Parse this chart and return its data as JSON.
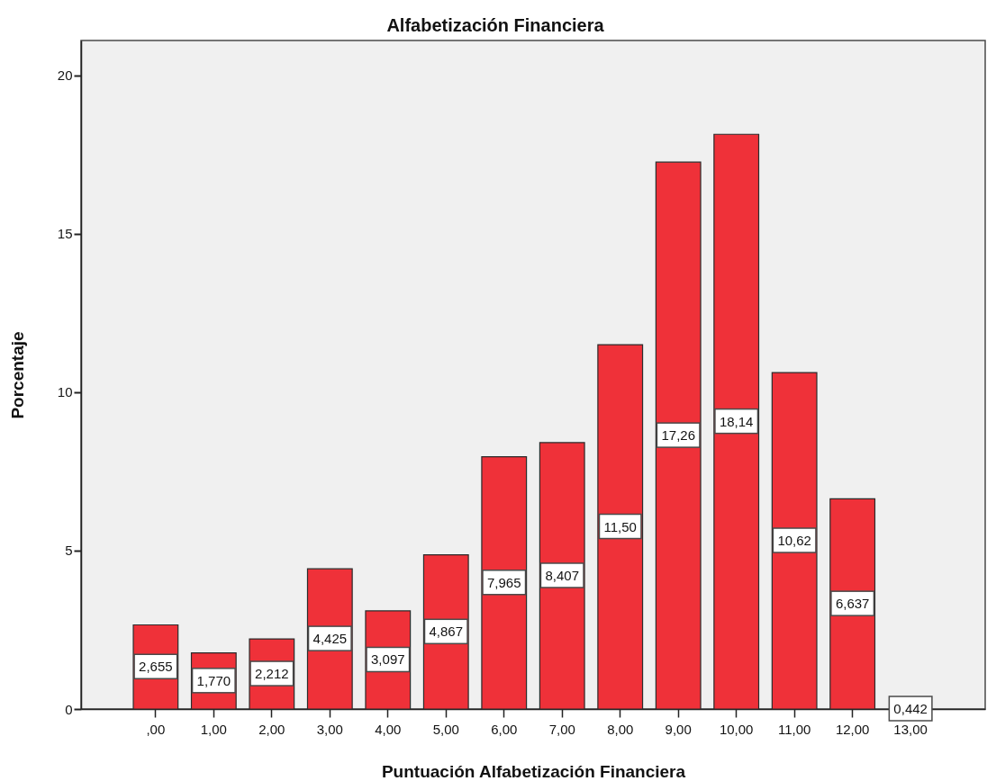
{
  "chart_data": {
    "type": "bar",
    "title": "Alfabetización Financiera",
    "xlabel": "Puntuación Alfabetización Financiera",
    "ylabel": "Porcentaje",
    "categories": [
      ",00",
      "1,00",
      "2,00",
      "3,00",
      "4,00",
      "5,00",
      "6,00",
      "7,00",
      "8,00",
      "9,00",
      "10,00",
      "11,00",
      "12,00",
      "13,00"
    ],
    "values": [
      2.655,
      1.77,
      2.212,
      4.425,
      3.097,
      4.867,
      7.965,
      8.407,
      11.5,
      17.26,
      18.14,
      10.62,
      6.637,
      null
    ],
    "value_labels": [
      "2,655",
      "1,770",
      "2,212",
      "4,425",
      "3,097",
      "4,867",
      "7,965",
      "8,407",
      "11,50",
      "17,26",
      "18,14",
      "10,62",
      "6,637",
      "0,442"
    ],
    "color": "#ef3139",
    "ylim": [
      0,
      21.1
    ],
    "yticks": [
      0,
      5,
      10,
      15,
      20
    ]
  }
}
